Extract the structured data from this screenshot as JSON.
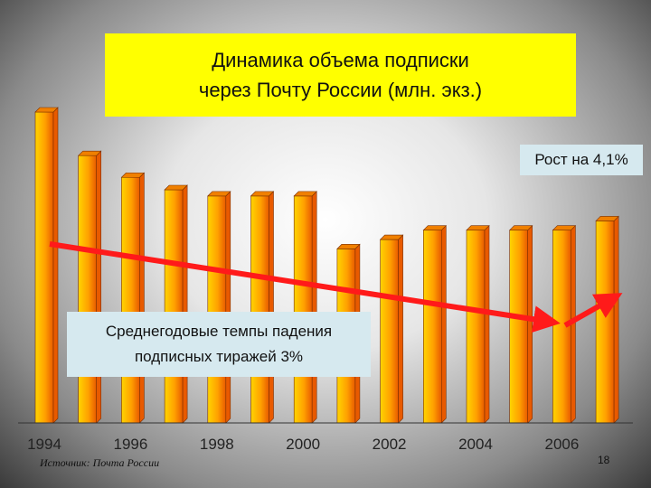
{
  "title_lines": [
    "Динамика объема подписки",
    "через Почту России (млн. экз.)"
  ],
  "growth_note": "Рост на 4,1%",
  "decline_note_lines": [
    "Среднегодовые темпы падения",
    "подписных тиражей 3%"
  ],
  "source": "Источник: Почта России",
  "page_number": "18",
  "colors": {
    "bar_light": "#ffd400",
    "bar_dark": "#e85a00",
    "bar_top": "#f08000",
    "arrow": "#ff1a1a",
    "title_bg": "#ffff00",
    "note_bg": "#d6e9ef"
  },
  "chart_data": {
    "type": "bar",
    "x": [
      1994,
      1995,
      1996,
      1997,
      1998,
      1999,
      2000,
      2001,
      2002,
      2003,
      2004,
      2005,
      2006,
      2007
    ],
    "tick_labels": [
      "1994",
      "1996",
      "1998",
      "2000",
      "2002",
      "2004",
      "2006"
    ],
    "tick_years": [
      1994,
      1996,
      1998,
      2000,
      2002,
      2004,
      2006
    ],
    "values": [
      100,
      86,
      79,
      75,
      73,
      73,
      73,
      56,
      59,
      62,
      62,
      62,
      62,
      65
    ],
    "ylim": [
      0,
      100
    ],
    "title": "Динамика объема подписки через Почту России (млн. экз.)",
    "xlabel": "",
    "ylabel": "",
    "grid": false,
    "legend": "none"
  }
}
